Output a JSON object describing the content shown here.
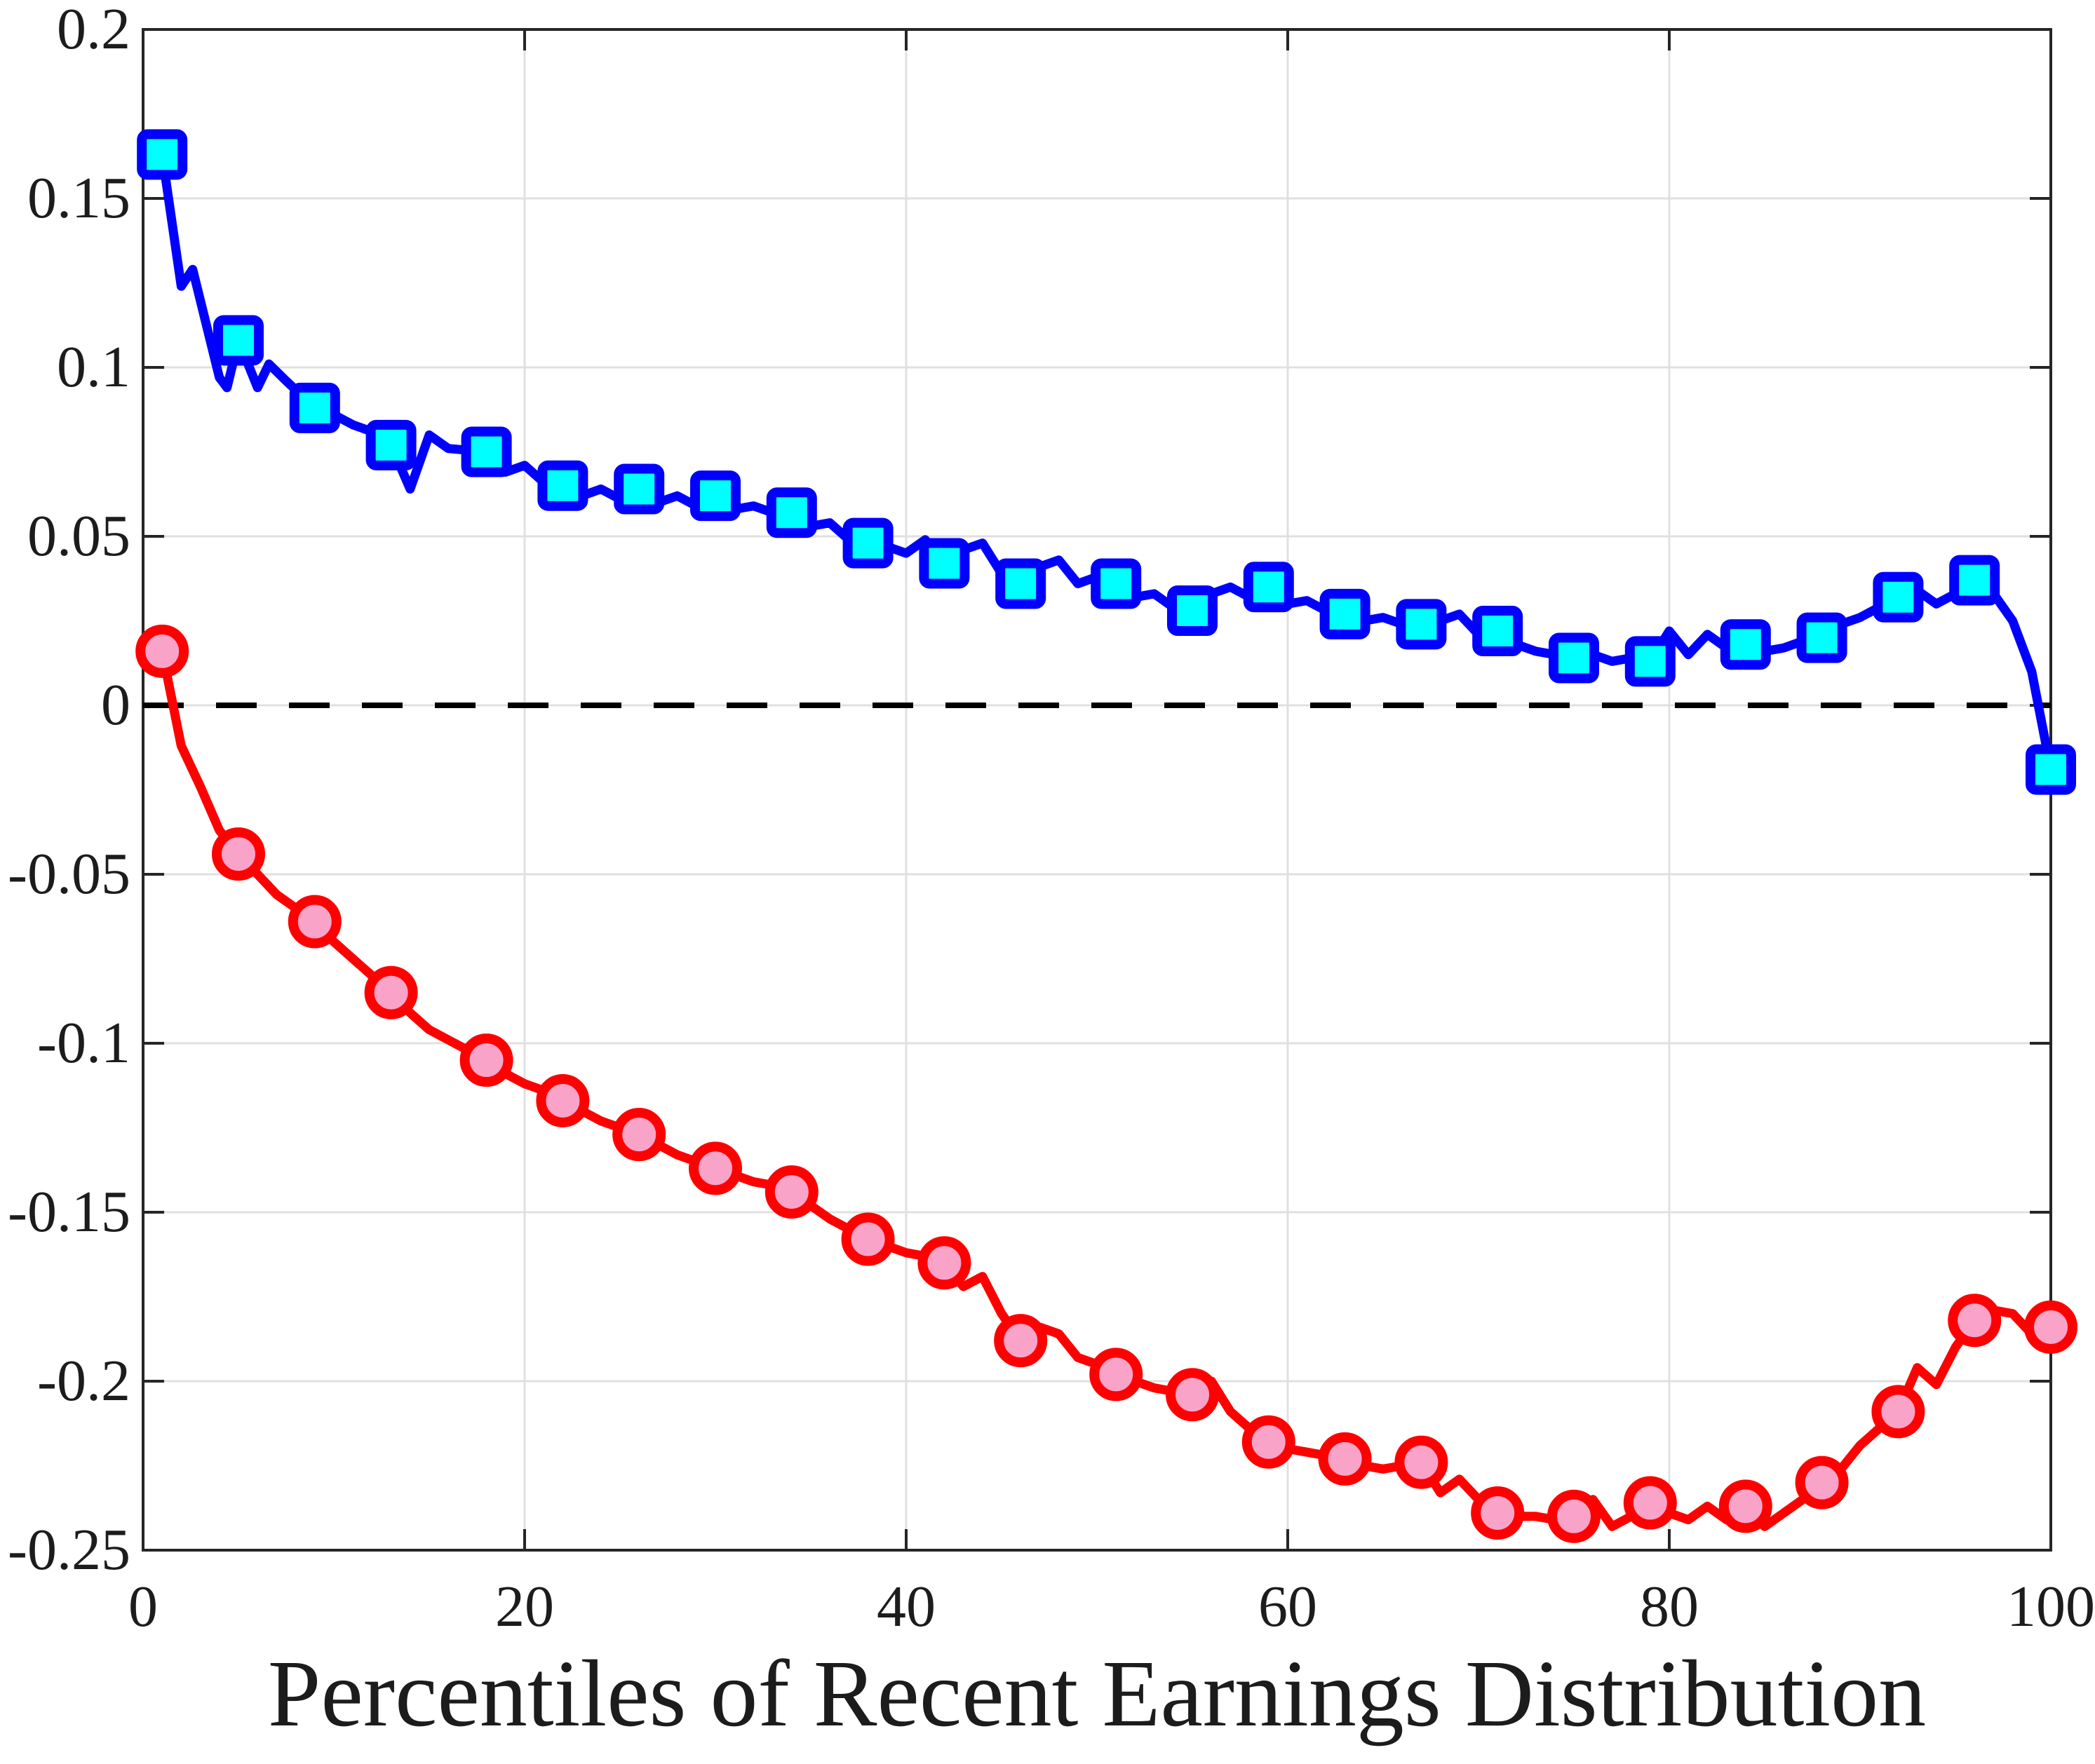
{
  "chart_data": {
    "type": "line",
    "title": "",
    "xlabel": "Percentiles of Recent Earnings Distribution",
    "ylabel": "",
    "xlim": [
      0,
      100
    ],
    "ylim": [
      -0.25,
      0.2
    ],
    "grid": true,
    "legend_position": "none",
    "x_ticks": [
      0,
      20,
      40,
      60,
      80,
      100
    ],
    "x_tick_labels": [
      "0",
      "20",
      "40",
      "60",
      "80",
      "100"
    ],
    "y_ticks": [
      0.2,
      0.15,
      0.1,
      0.05,
      0,
      -0.05,
      -0.1,
      -0.15,
      -0.2,
      -0.25
    ],
    "y_tick_labels": [
      "0.2",
      "0.15",
      "0.1",
      "0.05",
      "0",
      "-0.05",
      "-0.1",
      "-0.15",
      "-0.2",
      "-0.25"
    ],
    "zero_reference_line": {
      "y": 0,
      "style": "dashed",
      "color": "#000000"
    },
    "series": [
      {
        "name": "upper-series-blue-squares",
        "marker": "square",
        "line_color": "#0000FF",
        "marker_edge_color": "#0000FF",
        "marker_face_color": "#00FFFF",
        "markers": [
          [
            1,
            0.163
          ],
          [
            5,
            0.108
          ],
          [
            9,
            0.088
          ],
          [
            13,
            0.077
          ],
          [
            18,
            0.075
          ],
          [
            22,
            0.065
          ],
          [
            26,
            0.064
          ],
          [
            30,
            0.062
          ],
          [
            34,
            0.057
          ],
          [
            38,
            0.048
          ],
          [
            42,
            0.042
          ],
          [
            46,
            0.036
          ],
          [
            51,
            0.036
          ],
          [
            55,
            0.028
          ],
          [
            59,
            0.035
          ],
          [
            63,
            0.027
          ],
          [
            67,
            0.024
          ],
          [
            71,
            0.022
          ],
          [
            75,
            0.014
          ],
          [
            79,
            0.013
          ],
          [
            84,
            0.018
          ],
          [
            88,
            0.02
          ],
          [
            92,
            0.032
          ],
          [
            96,
            0.037
          ],
          [
            100,
            -0.019
          ]
        ],
        "line": [
          [
            1,
            0.163
          ],
          [
            2,
            0.124
          ],
          [
            2.6,
            0.129
          ],
          [
            4,
            0.097
          ],
          [
            4.4,
            0.094
          ],
          [
            5,
            0.108
          ],
          [
            6,
            0.094
          ],
          [
            6.6,
            0.101
          ],
          [
            7.5,
            0.096
          ],
          [
            9,
            0.088
          ],
          [
            10,
            0.086
          ],
          [
            11,
            0.083
          ],
          [
            12,
            0.081
          ],
          [
            13,
            0.077
          ],
          [
            14,
            0.064
          ],
          [
            15,
            0.08
          ],
          [
            16,
            0.076
          ],
          [
            18,
            0.075
          ],
          [
            19,
            0.069
          ],
          [
            20,
            0.071
          ],
          [
            21,
            0.066
          ],
          [
            22,
            0.065
          ],
          [
            23,
            0.062
          ],
          [
            24,
            0.064
          ],
          [
            25,
            0.061
          ],
          [
            26,
            0.064
          ],
          [
            27,
            0.06
          ],
          [
            28,
            0.062
          ],
          [
            29,
            0.059
          ],
          [
            30,
            0.062
          ],
          [
            31,
            0.058
          ],
          [
            32,
            0.059
          ],
          [
            33,
            0.057
          ],
          [
            34,
            0.057
          ],
          [
            35,
            0.053
          ],
          [
            36,
            0.054
          ],
          [
            37,
            0.049
          ],
          [
            38,
            0.048
          ],
          [
            39,
            0.047
          ],
          [
            40,
            0.045
          ],
          [
            41,
            0.049
          ],
          [
            42,
            0.042
          ],
          [
            43,
            0.046
          ],
          [
            44,
            0.048
          ],
          [
            45,
            0.039
          ],
          [
            46,
            0.036
          ],
          [
            47,
            0.041
          ],
          [
            48,
            0.043
          ],
          [
            49,
            0.036
          ],
          [
            50,
            0.038
          ],
          [
            51,
            0.036
          ],
          [
            52,
            0.032
          ],
          [
            53,
            0.033
          ],
          [
            54,
            0.029
          ],
          [
            55,
            0.028
          ],
          [
            56,
            0.033
          ],
          [
            57,
            0.035
          ],
          [
            58,
            0.032
          ],
          [
            59,
            0.035
          ],
          [
            60,
            0.03
          ],
          [
            61,
            0.031
          ],
          [
            62,
            0.028
          ],
          [
            63,
            0.027
          ],
          [
            64,
            0.025
          ],
          [
            65,
            0.026
          ],
          [
            66,
            0.024
          ],
          [
            67,
            0.024
          ],
          [
            68,
            0.025
          ],
          [
            69,
            0.027
          ],
          [
            70,
            0.021
          ],
          [
            71,
            0.022
          ],
          [
            72,
            0.018
          ],
          [
            73,
            0.016
          ],
          [
            74,
            0.015
          ],
          [
            75,
            0.014
          ],
          [
            76,
            0.015
          ],
          [
            77,
            0.013
          ],
          [
            78,
            0.014
          ],
          [
            79,
            0.013
          ],
          [
            80,
            0.022
          ],
          [
            81,
            0.015
          ],
          [
            82,
            0.021
          ],
          [
            83,
            0.017
          ],
          [
            84,
            0.018
          ],
          [
            85,
            0.016
          ],
          [
            86,
            0.017
          ],
          [
            87,
            0.019
          ],
          [
            88,
            0.02
          ],
          [
            89,
            0.024
          ],
          [
            90,
            0.026
          ],
          [
            91,
            0.029
          ],
          [
            92,
            0.032
          ],
          [
            93,
            0.034
          ],
          [
            94,
            0.03
          ],
          [
            95,
            0.033
          ],
          [
            96,
            0.037
          ],
          [
            97,
            0.033
          ],
          [
            98,
            0.025
          ],
          [
            99,
            0.01
          ],
          [
            100,
            -0.019
          ]
        ]
      },
      {
        "name": "lower-series-red-circles",
        "marker": "circle",
        "line_color": "#FF0000",
        "marker_edge_color": "#FF0000",
        "marker_face_color": "#F9A3C9",
        "markers": [
          [
            1,
            0.016
          ],
          [
            5,
            -0.044
          ],
          [
            9,
            -0.064
          ],
          [
            13,
            -0.085
          ],
          [
            18,
            -0.105
          ],
          [
            22,
            -0.117
          ],
          [
            26,
            -0.127
          ],
          [
            30,
            -0.137
          ],
          [
            34,
            -0.144
          ],
          [
            38,
            -0.158
          ],
          [
            42,
            -0.165
          ],
          [
            46,
            -0.188
          ],
          [
            51,
            -0.198
          ],
          [
            55,
            -0.204
          ],
          [
            59,
            -0.218
          ],
          [
            63,
            -0.223
          ],
          [
            67,
            -0.224
          ],
          [
            71,
            -0.239
          ],
          [
            75,
            -0.24
          ],
          [
            79,
            -0.236
          ],
          [
            84,
            -0.237
          ],
          [
            88,
            -0.23
          ],
          [
            92,
            -0.209
          ],
          [
            96,
            -0.182
          ],
          [
            100,
            -0.184
          ]
        ],
        "line": [
          [
            1,
            0.016
          ],
          [
            2,
            -0.012
          ],
          [
            3,
            -0.024
          ],
          [
            4,
            -0.037
          ],
          [
            5,
            -0.044
          ],
          [
            6,
            -0.05
          ],
          [
            7,
            -0.056
          ],
          [
            8,
            -0.06
          ],
          [
            9,
            -0.064
          ],
          [
            10,
            -0.07
          ],
          [
            11,
            -0.075
          ],
          [
            12,
            -0.08
          ],
          [
            13,
            -0.085
          ],
          [
            14,
            -0.091
          ],
          [
            15,
            -0.096
          ],
          [
            16,
            -0.099
          ],
          [
            17,
            -0.102
          ],
          [
            18,
            -0.105
          ],
          [
            19,
            -0.109
          ],
          [
            20,
            -0.112
          ],
          [
            21,
            -0.114
          ],
          [
            22,
            -0.117
          ],
          [
            23,
            -0.12
          ],
          [
            24,
            -0.123
          ],
          [
            25,
            -0.125
          ],
          [
            26,
            -0.127
          ],
          [
            27,
            -0.13
          ],
          [
            28,
            -0.133
          ],
          [
            29,
            -0.135
          ],
          [
            30,
            -0.137
          ],
          [
            31,
            -0.139
          ],
          [
            32,
            -0.141
          ],
          [
            33,
            -0.142
          ],
          [
            34,
            -0.144
          ],
          [
            35,
            -0.148
          ],
          [
            36,
            -0.152
          ],
          [
            37,
            -0.155
          ],
          [
            38,
            -0.158
          ],
          [
            39,
            -0.16
          ],
          [
            40,
            -0.162
          ],
          [
            41,
            -0.163
          ],
          [
            42,
            -0.165
          ],
          [
            43,
            -0.172
          ],
          [
            44,
            -0.169
          ],
          [
            45,
            -0.18
          ],
          [
            46,
            -0.188
          ],
          [
            47,
            -0.184
          ],
          [
            48,
            -0.186
          ],
          [
            49,
            -0.193
          ],
          [
            50,
            -0.195
          ],
          [
            51,
            -0.198
          ],
          [
            52,
            -0.2
          ],
          [
            53,
            -0.202
          ],
          [
            54,
            -0.203
          ],
          [
            55,
            -0.204
          ],
          [
            56,
            -0.2
          ],
          [
            57,
            -0.209
          ],
          [
            58,
            -0.214
          ],
          [
            59,
            -0.218
          ],
          [
            60,
            -0.22
          ],
          [
            61,
            -0.221
          ],
          [
            62,
            -0.222
          ],
          [
            63,
            -0.223
          ],
          [
            64,
            -0.225
          ],
          [
            65,
            -0.226
          ],
          [
            66,
            -0.225
          ],
          [
            67,
            -0.224
          ],
          [
            68,
            -0.233
          ],
          [
            69,
            -0.229
          ],
          [
            70,
            -0.235
          ],
          [
            71,
            -0.239
          ],
          [
            72,
            -0.24
          ],
          [
            73,
            -0.24
          ],
          [
            74,
            -0.241
          ],
          [
            75,
            -0.24
          ],
          [
            76,
            -0.235
          ],
          [
            77,
            -0.243
          ],
          [
            78,
            -0.24
          ],
          [
            79,
            -0.236
          ],
          [
            80,
            -0.239
          ],
          [
            81,
            -0.241
          ],
          [
            82,
            -0.237
          ],
          [
            83,
            -0.241
          ],
          [
            84,
            -0.237
          ],
          [
            85,
            -0.243
          ],
          [
            86,
            -0.239
          ],
          [
            87,
            -0.235
          ],
          [
            88,
            -0.23
          ],
          [
            89,
            -0.226
          ],
          [
            90,
            -0.219
          ],
          [
            91,
            -0.214
          ],
          [
            92,
            -0.209
          ],
          [
            93,
            -0.196
          ],
          [
            94,
            -0.201
          ],
          [
            95,
            -0.19
          ],
          [
            96,
            -0.182
          ],
          [
            97,
            -0.179
          ],
          [
            98,
            -0.18
          ],
          [
            99,
            -0.186
          ],
          [
            100,
            -0.184
          ]
        ]
      }
    ],
    "axis_color": "#262626",
    "grid_color": "#E0E0E0",
    "background_color": "#FFFFFF"
  }
}
